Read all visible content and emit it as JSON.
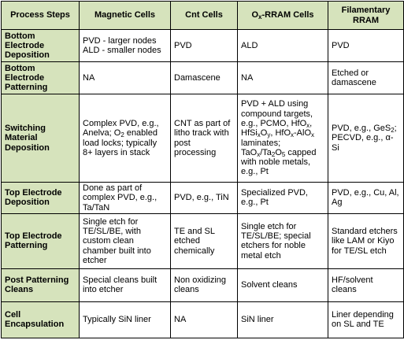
{
  "table": {
    "header": [
      "Process Steps",
      "Magnetic Cells",
      "Cnt Cells",
      [
        "O",
        {
          "sub": "x"
        },
        "-RRAM Cells"
      ],
      "Filamentary RRAM"
    ],
    "rows": [
      [
        "Bottom Electrode Deposition",
        "PVD - larger nodes ALD - smaller nodes",
        "PVD",
        "ALD",
        "PVD"
      ],
      [
        "Bottom Electrode Patterning",
        "NA",
        "Damascene",
        "NA",
        "Etched or damascene"
      ],
      [
        "Switching Material Deposition",
        [
          "Complex PVD, e.g., Anelva; O",
          {
            "sub": "2"
          },
          " enabled load locks; typically 8+ layers in stack"
        ],
        "CNT as part of litho track with post processing",
        [
          "PVD + ALD using compound targets, e.g., PCMO, HfO",
          {
            "sub": "x"
          },
          ", HfSi",
          {
            "sub": "x"
          },
          "O",
          {
            "sub": "y"
          },
          ", HfO",
          {
            "sub": "x"
          },
          "-AlO",
          {
            "sub": "x"
          },
          " laminates; TaO",
          {
            "sub": "x"
          },
          "/Ta",
          {
            "sub": "2"
          },
          "O",
          {
            "sub": "5"
          },
          " capped with noble metals, e.g., Pt"
        ],
        [
          "PVD, e.g., GeS",
          {
            "sub": "2"
          },
          "; PECVD, e.g., α-Si"
        ]
      ],
      [
        "Top Electrode Deposition",
        "Done as part of complex PVD, e.g., Ta/TaN",
        "PVD, e.g., TiN",
        "Specialized PVD, e.g., Pt",
        "PVD, e.g., Cu, Al, Ag"
      ],
      [
        "Top Electrode Patterning",
        "Single etch for TE/SL/BE, with custom clean chamber built into etcher",
        "TE and SL etched chemically",
        "Single etch for TE/SL/BE; special etchers for noble metal etch",
        "Standard etchers like LAM or Kiyo for TE/SL etch"
      ],
      [
        "Post Patterning Cleans",
        "Special cleans built into etcher",
        "Non oxidizing cleans",
        "Solvent cleans",
        "HF/solvent cleans"
      ],
      [
        "Cell Encapsulation",
        "Typically SiN liner",
        "NA",
        "SiN liner",
        "Liner depending on SL and TE"
      ]
    ]
  }
}
